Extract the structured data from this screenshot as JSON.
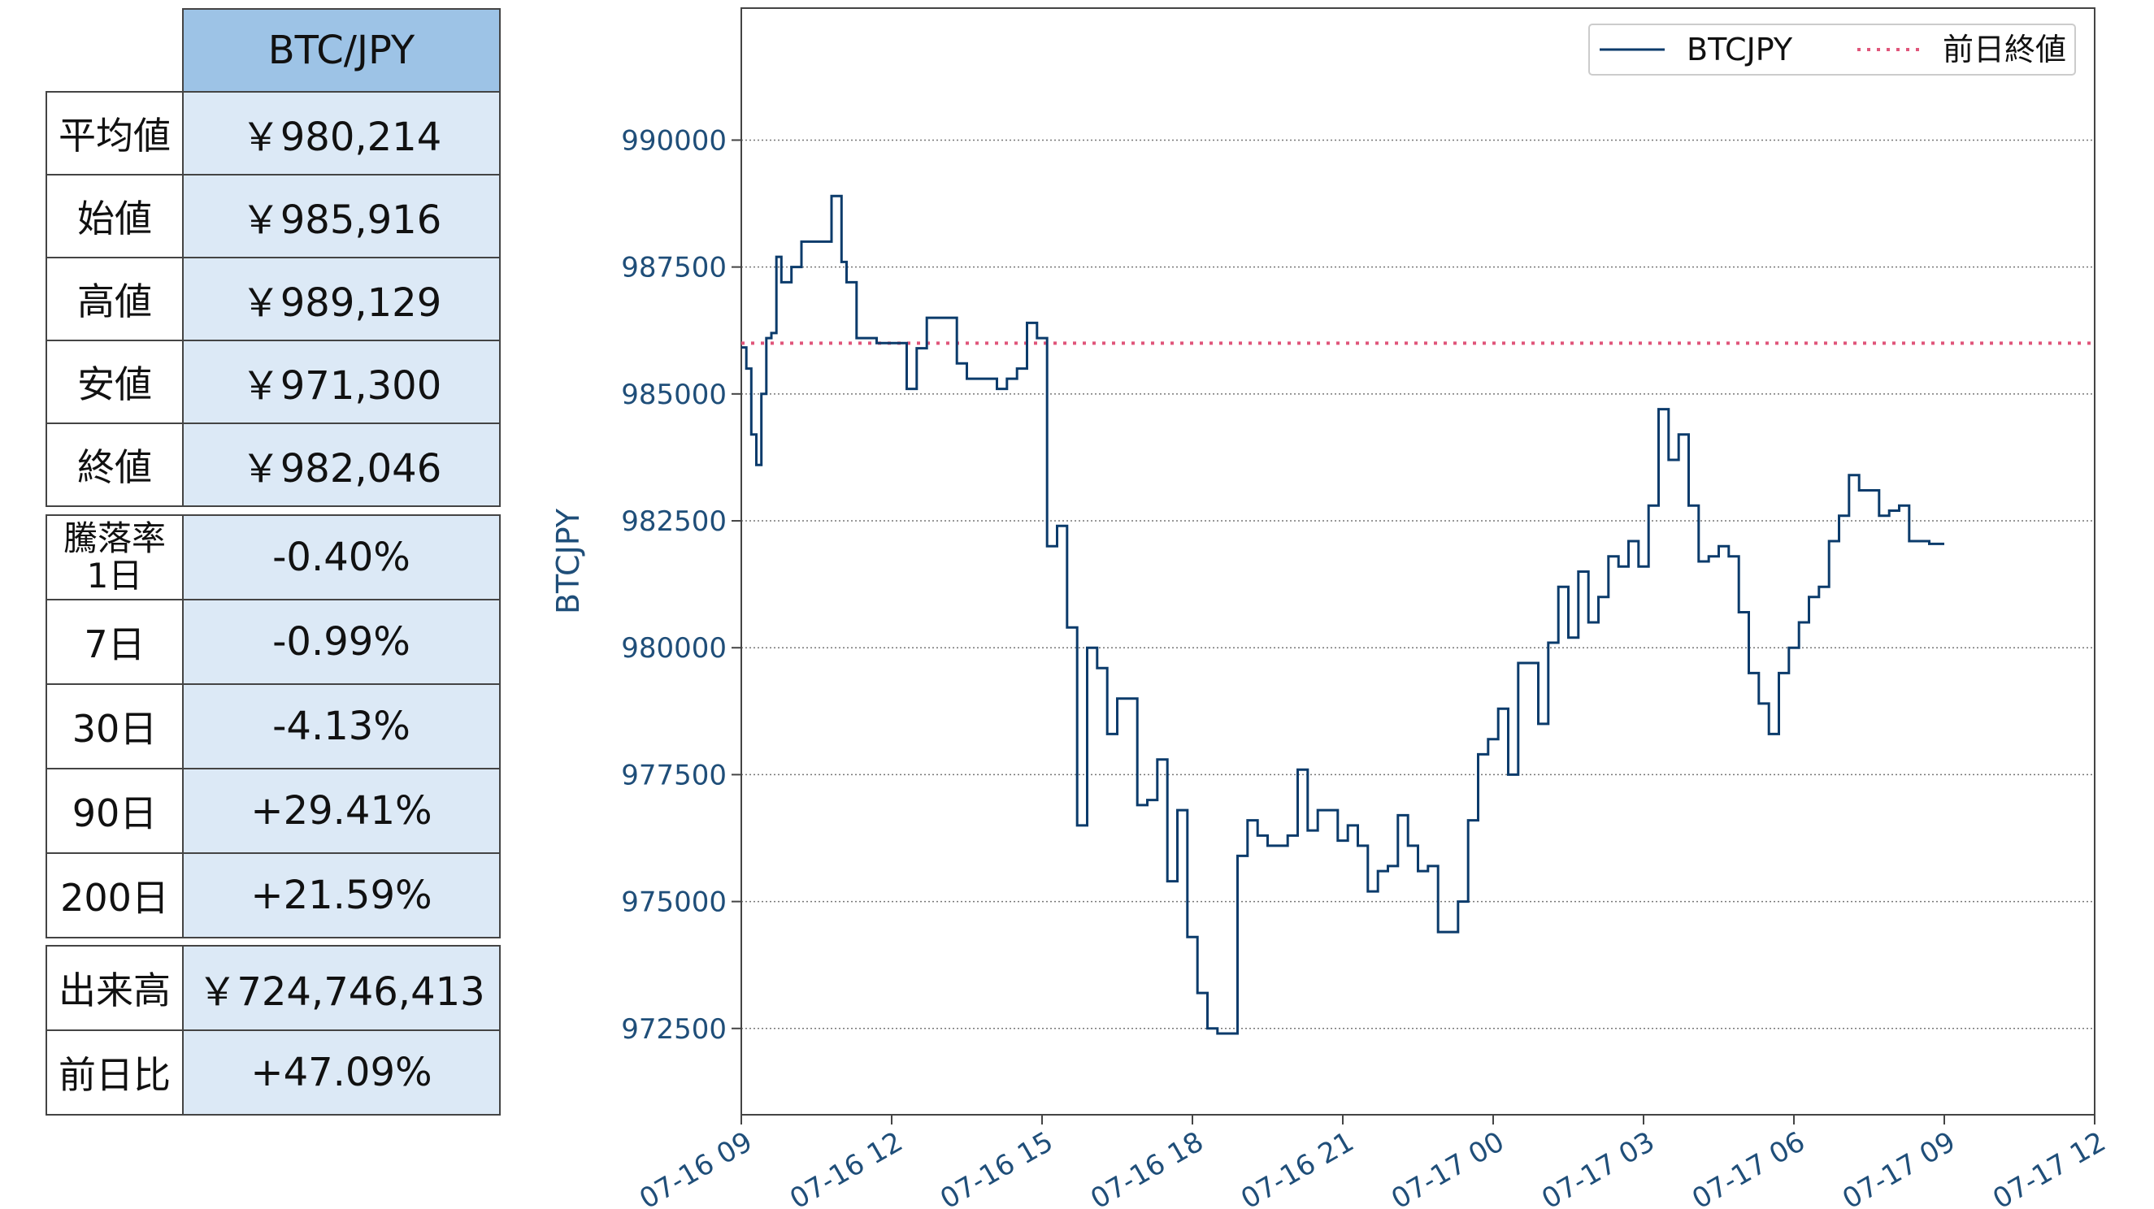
{
  "summary_table": {
    "header": "BTC/JPY",
    "rows": [
      {
        "label": "平均値",
        "value": "￥980,214"
      },
      {
        "label": "始値",
        "value": "￥985,916"
      },
      {
        "label": "高値",
        "value": "￥989,129"
      },
      {
        "label": "安値",
        "value": "￥971,300"
      },
      {
        "label": "終値",
        "value": "￥982,046"
      }
    ]
  },
  "change_table": {
    "rows": [
      {
        "label_line1": "騰落率",
        "label_line2": "1日",
        "value": "-0.40%"
      },
      {
        "label": "7日",
        "value": "-0.99%"
      },
      {
        "label": "30日",
        "value": "-4.13%"
      },
      {
        "label": "90日",
        "value": "+29.41%"
      },
      {
        "label": "200日",
        "value": "+21.59%"
      }
    ]
  },
  "volume_table": {
    "rows": [
      {
        "label": "出来高",
        "value": "￥724,746,413"
      },
      {
        "label": "前日比",
        "value": "+47.09%"
      }
    ]
  },
  "colors": {
    "series_line": "#0b3b6b",
    "prev_close_line": "#e0557a",
    "axis_text": "#1f4e79",
    "header_fill": "#9dc3e6",
    "value_fill": "#dce9f6"
  },
  "chart_data": {
    "type": "line",
    "ylabel": "BTCJPY",
    "xlabel": "",
    "ylim": [
      970800,
      992600
    ],
    "xlim": [
      "07-16 09:00",
      "07-17 12:00"
    ],
    "x_ticks": [
      "07-16 09",
      "07-16 12",
      "07-16 15",
      "07-16 18",
      "07-16 21",
      "07-17 00",
      "07-17 03",
      "07-17 06",
      "07-17 09",
      "07-17 12"
    ],
    "y_ticks": [
      972500,
      975000,
      977500,
      980000,
      982500,
      985000,
      987500,
      990000
    ],
    "grid": "horizontal-dotted",
    "legend_position": "top-right",
    "series": [
      {
        "name": "BTCJPY",
        "style": "solid",
        "x_hours_since_0716_0900": [
          0,
          0.1,
          0.2,
          0.3,
          0.4,
          0.5,
          0.6,
          0.7,
          0.8,
          1.0,
          1.2,
          1.4,
          1.6,
          1.8,
          2.0,
          2.1,
          2.3,
          2.5,
          2.7,
          2.9,
          3.1,
          3.3,
          3.5,
          3.7,
          3.9,
          4.1,
          4.3,
          4.5,
          4.7,
          4.9,
          5.1,
          5.3,
          5.5,
          5.7,
          5.9,
          6.1,
          6.3,
          6.5,
          6.7,
          6.9,
          7.1,
          7.3,
          7.5,
          7.7,
          7.9,
          8.1,
          8.3,
          8.5,
          8.7,
          8.9,
          9.1,
          9.3,
          9.5,
          9.7,
          9.9,
          10.1,
          10.3,
          10.5,
          10.7,
          10.9,
          11.1,
          11.3,
          11.5,
          11.7,
          11.9,
          12.1,
          12.3,
          12.5,
          12.7,
          12.9,
          13.1,
          13.3,
          13.5,
          13.7,
          13.9,
          14.1,
          14.3,
          14.5,
          14.7,
          14.9,
          15.1,
          15.3,
          15.5,
          15.7,
          15.9,
          16.1,
          16.3,
          16.5,
          16.7,
          16.9,
          17.1,
          17.3,
          17.5,
          17.7,
          17.9,
          18.1,
          18.3,
          18.5,
          18.7,
          18.9,
          19.1,
          19.3,
          19.5,
          19.7,
          19.9,
          20.1,
          20.3,
          20.5,
          20.7,
          20.9,
          21.1,
          21.3,
          21.5,
          21.7,
          21.9,
          22.1,
          22.3,
          22.5,
          22.7,
          22.9,
          23.1,
          23.3,
          23.5,
          23.7,
          23.9,
          24.0
        ],
        "values": [
          985916,
          985500,
          984200,
          983600,
          985000,
          986100,
          986200,
          987700,
          987200,
          987500,
          988000,
          988000,
          988000,
          988900,
          987600,
          987200,
          986100,
          986100,
          986000,
          986000,
          986000,
          985100,
          985900,
          986500,
          986500,
          986500,
          985600,
          985300,
          985300,
          985300,
          985100,
          985300,
          985500,
          986400,
          986100,
          982000,
          982400,
          980400,
          976500,
          980000,
          979600,
          978300,
          979000,
          979000,
          976900,
          977000,
          977800,
          975400,
          976800,
          974300,
          973200,
          972500,
          972400,
          972400,
          975900,
          976600,
          976300,
          976100,
          976100,
          976300,
          977600,
          976400,
          976800,
          976800,
          976200,
          976500,
          976100,
          975200,
          975600,
          975700,
          976700,
          976100,
          975600,
          975700,
          974400,
          974400,
          975000,
          976600,
          977900,
          978200,
          978800,
          977500,
          979700,
          979700,
          978500,
          980100,
          981200,
          980200,
          981500,
          980500,
          981000,
          981800,
          981600,
          982100,
          981600,
          982800,
          984700,
          983700,
          984200,
          982800,
          981700,
          981800,
          982000,
          981800,
          980700,
          979500,
          978900,
          978300,
          979500,
          980000,
          980500,
          981000,
          981200,
          982100,
          982600,
          983400,
          983100,
          983100,
          982600,
          982700,
          982800,
          982100,
          982100,
          982046,
          982046,
          982046
        ],
        "note_visible_range_end": "07-17 09"
      },
      {
        "name": "前日終値",
        "style": "dotted",
        "values": [
          986000
        ]
      }
    ]
  }
}
